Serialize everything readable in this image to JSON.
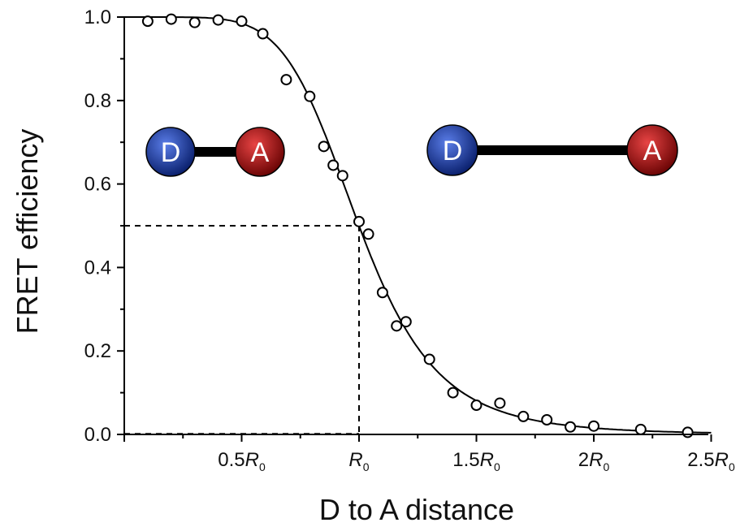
{
  "chart_data": {
    "type": "scatter",
    "xlabel": "D to A distance",
    "ylabel": "FRET efficiency",
    "xlim": [
      0.0,
      2.5
    ],
    "ylim": [
      0.0,
      1.0
    ],
    "x_unit": "R0",
    "yticks": [
      "0.0",
      "0.2",
      "0.4",
      "0.6",
      "0.8",
      "1.0"
    ],
    "xticks": [
      {
        "value": 0.5,
        "coef": "0.5",
        "sym": "R",
        "sub": "0"
      },
      {
        "value": 1.0,
        "coef": "",
        "sym": "R",
        "sub": "0"
      },
      {
        "value": 1.5,
        "coef": "1.5",
        "sym": "R",
        "sub": "0"
      },
      {
        "value": 2.0,
        "coef": "2",
        "sym": "R",
        "sub": "0"
      },
      {
        "value": 2.5,
        "coef": "2.5",
        "sym": "R",
        "sub": "0"
      }
    ],
    "points": [
      {
        "x": 0.1,
        "y": 0.99
      },
      {
        "x": 0.2,
        "y": 0.995
      },
      {
        "x": 0.3,
        "y": 0.987
      },
      {
        "x": 0.4,
        "y": 0.993
      },
      {
        "x": 0.5,
        "y": 0.99
      },
      {
        "x": 0.59,
        "y": 0.96
      },
      {
        "x": 0.69,
        "y": 0.85
      },
      {
        "x": 0.79,
        "y": 0.81
      },
      {
        "x": 0.85,
        "y": 0.69
      },
      {
        "x": 0.89,
        "y": 0.645
      },
      {
        "x": 0.93,
        "y": 0.62
      },
      {
        "x": 1.0,
        "y": 0.51
      },
      {
        "x": 1.04,
        "y": 0.48
      },
      {
        "x": 1.1,
        "y": 0.34
      },
      {
        "x": 1.16,
        "y": 0.26
      },
      {
        "x": 1.2,
        "y": 0.27
      },
      {
        "x": 1.3,
        "y": 0.18
      },
      {
        "x": 1.4,
        "y": 0.1
      },
      {
        "x": 1.5,
        "y": 0.07
      },
      {
        "x": 1.6,
        "y": 0.075
      },
      {
        "x": 1.7,
        "y": 0.043
      },
      {
        "x": 1.8,
        "y": 0.035
      },
      {
        "x": 1.9,
        "y": 0.018
      },
      {
        "x": 2.0,
        "y": 0.02
      },
      {
        "x": 2.2,
        "y": 0.012
      },
      {
        "x": 2.4,
        "y": 0.005
      }
    ],
    "fit_curve": "E = 1 / (1 + (r/R0)^6)",
    "reference": {
      "x": 1.0,
      "y": 0.5
    },
    "insets": [
      {
        "donor": "D",
        "acceptor": "A",
        "separation": "short"
      },
      {
        "donor": "D",
        "acceptor": "A",
        "separation": "long"
      }
    ],
    "colors": {
      "donor": "#1f3fb0",
      "acceptor": "#b01010",
      "line": "#000000"
    }
  }
}
